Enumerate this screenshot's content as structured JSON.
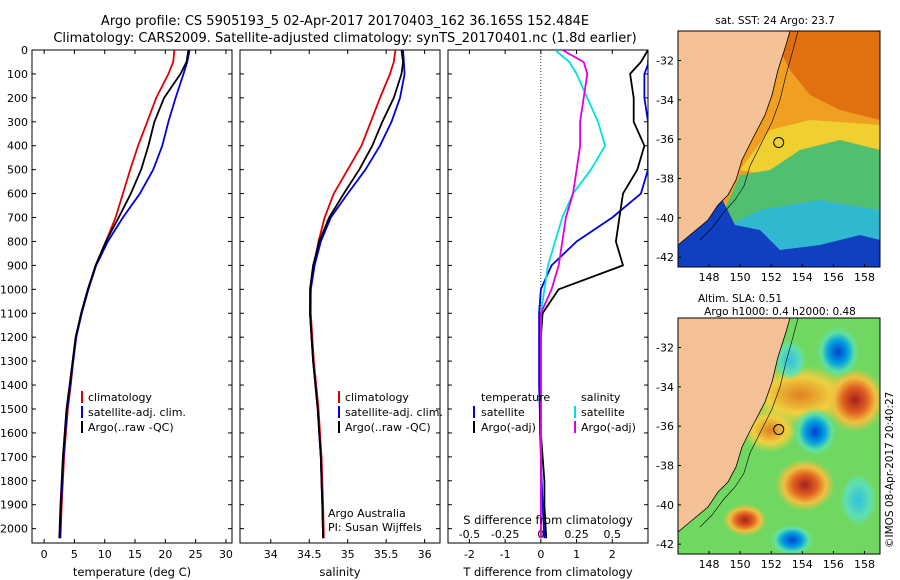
{
  "title_line1": "Argo profile: CS 5905193_5 02-Apr-2017 20170403_162 36.165S 152.484E",
  "title_line2": "Climatology: CARS2009. Satellite-adjusted climatology: synTS_20170401.nc (1.8d earlier)",
  "colors": {
    "climatology": "#e00000",
    "satellite": "#0000e0",
    "argo": "#000000",
    "sat_salinity": "#00e0e0",
    "argo_salinity": "#e000e0",
    "land": "#f5c298"
  },
  "chart_data": [
    {
      "type": "line",
      "id": "temperature",
      "xlabel": "temperature (deg C)",
      "xlim": [
        -2,
        31
      ],
      "ylim": [
        2060,
        0
      ],
      "xticks": [
        0,
        5,
        10,
        15,
        20,
        25,
        30
      ],
      "yticks": [
        0,
        100,
        200,
        300,
        400,
        500,
        600,
        700,
        800,
        900,
        1000,
        1100,
        1200,
        1300,
        1400,
        1500,
        1600,
        1700,
        1800,
        1900,
        2000
      ],
      "legend": [
        "climatology",
        "satellite-adj. clim.",
        "Argo(..raw -QC)"
      ],
      "series": [
        {
          "name": "climatology",
          "color": "#e00000",
          "x": [
            21.5,
            21.3,
            20.5,
            18.5,
            17.0,
            15.5,
            14.2,
            13.0,
            11.8,
            10.2,
            8.5,
            7.3,
            6.2,
            5.3,
            4.8,
            4.4,
            3.9,
            3.6,
            3.3,
            3.1,
            2.9,
            2.7
          ],
          "y": [
            0,
            50,
            100,
            200,
            300,
            400,
            500,
            600,
            700,
            800,
            900,
            1000,
            1100,
            1200,
            1300,
            1400,
            1500,
            1600,
            1700,
            1800,
            1900,
            2040
          ]
        },
        {
          "name": "satellite-adj. clim.",
          "color": "#0000e0",
          "x": [
            24.0,
            23.6,
            23.0,
            21.7,
            20.5,
            19.5,
            18.0,
            15.8,
            13.0,
            10.5,
            8.6,
            7.3,
            6.2,
            5.3,
            4.8,
            4.3,
            3.8,
            3.5,
            3.2,
            3.0,
            2.8,
            2.6
          ],
          "y": [
            0,
            50,
            100,
            200,
            300,
            400,
            500,
            600,
            700,
            800,
            900,
            1000,
            1100,
            1200,
            1300,
            1400,
            1500,
            1600,
            1700,
            1800,
            1900,
            2040
          ]
        },
        {
          "name": "Argo(..raw -QC)",
          "color": "#000000",
          "x": [
            23.8,
            23.5,
            22.5,
            19.8,
            18.2,
            17.2,
            16.0,
            14.3,
            12.3,
            10.2,
            8.5,
            7.2,
            6.1,
            5.2,
            4.7,
            4.2,
            3.7,
            3.4,
            3.1,
            2.9,
            2.7,
            2.5
          ],
          "y": [
            0,
            50,
            100,
            200,
            300,
            400,
            500,
            600,
            700,
            800,
            900,
            1000,
            1100,
            1200,
            1300,
            1400,
            1500,
            1600,
            1700,
            1800,
            1900,
            2040
          ]
        }
      ]
    },
    {
      "type": "line",
      "id": "salinity",
      "xlabel": "salinity",
      "xlim": [
        33.6,
        36.2
      ],
      "ylim": [
        2060,
        0
      ],
      "xticks": [
        34,
        34.5,
        35,
        35.5,
        36
      ],
      "legend": [
        "climatology",
        "satellite-adj. clim.",
        "Argo(..raw -QC)"
      ],
      "annotation": [
        "Argo Australia",
        "PI: Susan Wijffels"
      ],
      "series": [
        {
          "name": "climatology",
          "color": "#e00000",
          "x": [
            35.62,
            35.6,
            35.55,
            35.42,
            35.3,
            35.18,
            35.0,
            34.82,
            34.7,
            34.62,
            34.56,
            34.52,
            34.52,
            34.54,
            34.56,
            34.59,
            34.62,
            34.64,
            34.66,
            34.67,
            34.68,
            34.69
          ],
          "y": [
            0,
            50,
            100,
            200,
            300,
            400,
            500,
            600,
            700,
            800,
            900,
            1000,
            1100,
            1200,
            1300,
            1400,
            1500,
            1600,
            1700,
            1800,
            1900,
            2040
          ]
        },
        {
          "name": "satellite-adj. clim.",
          "color": "#0000e0",
          "x": [
            35.72,
            35.73,
            35.74,
            35.68,
            35.57,
            35.42,
            35.23,
            35.0,
            34.78,
            34.65,
            34.57,
            34.52,
            34.51,
            34.53,
            34.55,
            34.58,
            34.61,
            34.63,
            34.65,
            34.66,
            34.67,
            34.68
          ],
          "y": [
            0,
            50,
            100,
            200,
            300,
            400,
            500,
            600,
            700,
            800,
            900,
            1000,
            1100,
            1200,
            1300,
            1400,
            1500,
            1600,
            1700,
            1800,
            1900,
            2040
          ]
        },
        {
          "name": "Argo(..raw -QC)",
          "color": "#000000",
          "x": [
            35.7,
            35.72,
            35.7,
            35.6,
            35.45,
            35.32,
            35.15,
            34.95,
            34.76,
            34.63,
            34.55,
            34.51,
            34.51,
            34.53,
            34.55,
            34.58,
            34.61,
            34.63,
            34.65,
            34.66,
            34.67,
            34.68
          ],
          "y": [
            0,
            50,
            100,
            200,
            300,
            400,
            500,
            600,
            700,
            800,
            900,
            1000,
            1100,
            1200,
            1300,
            1400,
            1500,
            1600,
            1700,
            1800,
            1900,
            2040
          ]
        }
      ]
    },
    {
      "type": "line",
      "id": "difference",
      "xlabel": "T difference from climatology",
      "xlabel_top": "S difference from climatology",
      "xlim": [
        -2.6,
        3.0
      ],
      "ylim": [
        2060,
        0
      ],
      "xticks": [
        -2,
        -1,
        0,
        1,
        2
      ],
      "xticks_top": [
        "-0.5",
        "-0.25",
        "0",
        "0.25",
        "0.5"
      ],
      "legend_left_title": "temperature",
      "legend_left": [
        "satellite",
        "Argo(-adj)"
      ],
      "legend_right_title": "salinity",
      "legend_right": [
        "satellite",
        "Argo(-adj)"
      ],
      "series": [
        {
          "name": "temperature satellite",
          "color": "#0000e0",
          "x": [
            3.0,
            3.0,
            2.9,
            2.9,
            3.0,
            3.0,
            3.0,
            2.8,
            2.0,
            1.0,
            0.3,
            0.0,
            -0.05,
            -0.05,
            -0.05,
            -0.05,
            -0.03,
            -0.02,
            0.0,
            0.02,
            0.05,
            0.1
          ],
          "y": [
            40,
            60,
            100,
            200,
            300,
            400,
            500,
            600,
            700,
            800,
            900,
            1000,
            1100,
            1200,
            1300,
            1400,
            1500,
            1600,
            1700,
            1800,
            1900,
            2040
          ]
        },
        {
          "name": "temperature Argo(-adj)",
          "color": "#000000",
          "x": [
            3.0,
            2.8,
            2.5,
            2.6,
            2.6,
            2.9,
            2.7,
            2.3,
            2.2,
            2.1,
            2.3,
            0.5,
            0.05,
            0.0,
            0.0,
            0.0,
            0.0,
            0.0,
            0.05,
            0.1,
            0.1,
            0.15
          ],
          "y": [
            0,
            50,
            100,
            200,
            300,
            400,
            500,
            600,
            700,
            800,
            900,
            1000,
            1100,
            1200,
            1300,
            1400,
            1500,
            1600,
            1700,
            1800,
            1900,
            2040
          ]
        },
        {
          "name": "salinity satellite",
          "color": "#00e0e0",
          "x": [
            0.4,
            0.8,
            1.0,
            1.3,
            1.6,
            1.8,
            1.4,
            0.9,
            0.6,
            0.4,
            0.2,
            0.1,
            0.0,
            0.0,
            0.0,
            0.0,
            0.0,
            0.0,
            0.0,
            0.0,
            0.0,
            0.0
          ],
          "y": [
            0,
            50,
            100,
            200,
            300,
            400,
            500,
            600,
            700,
            800,
            900,
            1000,
            1100,
            1200,
            1300,
            1400,
            1500,
            1600,
            1700,
            1800,
            1900,
            2040
          ]
        },
        {
          "name": "salinity Argo(-adj)",
          "color": "#e000e0",
          "x": [
            0.6,
            1.2,
            1.3,
            1.2,
            1.1,
            1.1,
            1.0,
            0.9,
            0.7,
            0.6,
            0.5,
            0.3,
            0.0,
            0.0,
            0.0,
            0.0,
            0.0,
            0.0,
            0.0,
            0.0,
            0.0,
            0.0
          ],
          "y": [
            0,
            50,
            100,
            200,
            300,
            400,
            500,
            600,
            700,
            800,
            900,
            1000,
            1100,
            1200,
            1300,
            1400,
            1500,
            1600,
            1700,
            1800,
            1900,
            2040
          ]
        }
      ]
    }
  ],
  "maps": [
    {
      "id": "sst-map",
      "title": "sat. SST: 24 Argo: 23.7",
      "xticks": [
        "148",
        "150",
        "152",
        "154",
        "156",
        "158"
      ],
      "yticks": [
        "-32",
        "-34",
        "-36",
        "-38",
        "-40",
        "-42"
      ],
      "xlim": [
        146,
        159
      ],
      "ylim": [
        -42.5,
        -30.5
      ],
      "argo_point": [
        152.48,
        -36.17
      ]
    },
    {
      "id": "sla-map",
      "title_line1": "Altim. SLA: 0.51",
      "title_line2": "Argo h1000: 0.4 h2000: 0.48",
      "xticks": [
        "148",
        "150",
        "152",
        "154",
        "156",
        "158"
      ],
      "yticks": [
        "-32",
        "-34",
        "-36",
        "-38",
        "-40",
        "-42"
      ],
      "xlim": [
        146,
        159
      ],
      "ylim": [
        -42.5,
        -30.5
      ],
      "argo_point": [
        152.48,
        -36.17
      ]
    }
  ],
  "credit": "©IMOS 08-Apr-2017 20:40:27"
}
